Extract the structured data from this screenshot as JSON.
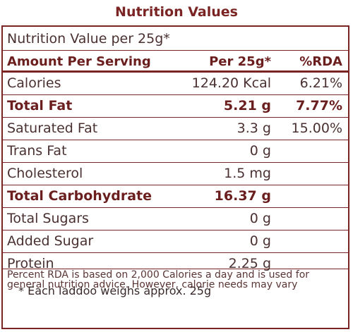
{
  "title": "Nutrition Values",
  "intro": "Nutrition Value per 25g*",
  "header": {
    "amount": "Amount Per Serving",
    "per": "Per 25g*",
    "rda": "%RDA"
  },
  "rows": [
    {
      "label": "Calories",
      "per": "124.20 Kcal",
      "rda": "6.21%",
      "bold": false
    },
    {
      "label": "Total Fat",
      "per": "5.21 g",
      "rda": "7.77%",
      "bold": true
    },
    {
      "label": "Saturated Fat",
      "per": "3.3 g",
      "rda": "15.00%",
      "bold": false
    },
    {
      "label": "Trans Fat",
      "per": "0 g",
      "rda": "",
      "bold": false
    },
    {
      "label": "Cholesterol",
      "per": "1.5 mg",
      "rda": "",
      "bold": false
    },
    {
      "label": "Total Carbohydrate",
      "per": "16.37 g",
      "rda": "",
      "bold": true
    },
    {
      "label": "Total Sugars",
      "per": "0 g",
      "rda": "",
      "bold": false
    },
    {
      "label": "Added Sugar",
      "per": "0 g",
      "rda": "",
      "bold": false
    },
    {
      "label": "Protein",
      "per": "2.25 g",
      "rda": "",
      "bold": false
    }
  ],
  "footnote": "Percent RDA is based on 2,000 Calories a day and is used for general nutrition advice. However, calorie needs may vary",
  "note": "* Each laddoo weighs approx. 25g"
}
